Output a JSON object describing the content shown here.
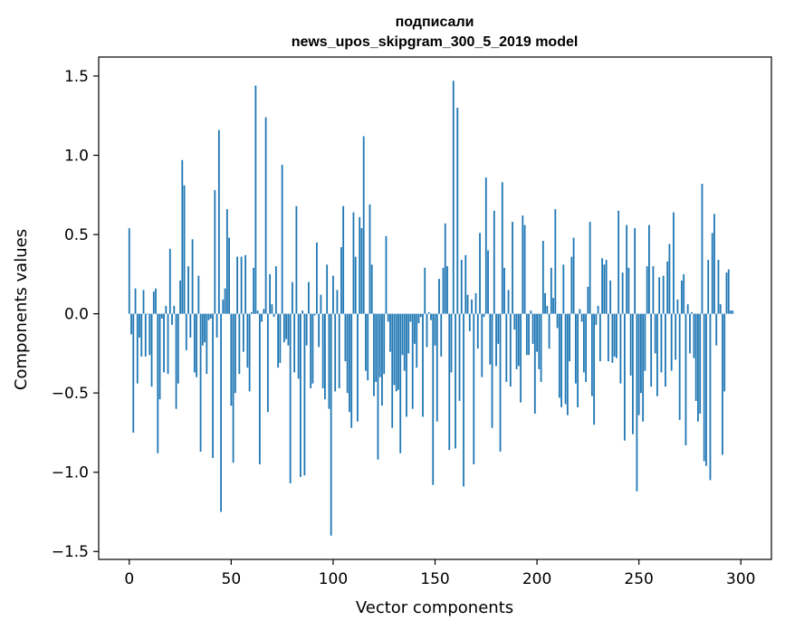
{
  "chart_data": {
    "type": "bar",
    "title": "подписали",
    "subtitle": "news_upos_skipgram_300_5_2019 model",
    "xlabel": "Vector components",
    "ylabel": "Components values",
    "xlim": [
      -15,
      315
    ],
    "ylim": [
      -1.55,
      1.62
    ],
    "x_ticks": [
      0,
      50,
      100,
      150,
      200,
      250,
      300
    ],
    "y_ticks": [
      -1.5,
      -1.0,
      -0.5,
      0.0,
      0.5,
      1.0,
      1.5
    ],
    "x_tick_labels": [
      "0",
      "50",
      "100",
      "150",
      "200",
      "250",
      "300"
    ],
    "y_tick_labels": [
      "−1.5",
      "−1.0",
      "−0.5",
      "0.0",
      "0.5",
      "1.0",
      "1.5"
    ],
    "bar_color": "#1f77b4",
    "grid": false,
    "values": [
      0.54,
      -0.13,
      -0.75,
      0.16,
      -0.44,
      -0.15,
      -0.27,
      0.15,
      -0.27,
      0.0,
      -0.26,
      -0.46,
      0.14,
      0.16,
      -0.88,
      -0.54,
      -0.03,
      -0.37,
      0.05,
      -0.38,
      0.41,
      -0.07,
      0.05,
      -0.6,
      -0.44,
      0.21,
      0.97,
      0.81,
      -0.23,
      0.3,
      -0.15,
      0.47,
      -0.37,
      -0.4,
      0.24,
      -0.87,
      -0.2,
      -0.18,
      -0.38,
      -0.04,
      -0.03,
      -0.91,
      0.78,
      -0.15,
      1.16,
      -1.25,
      0.09,
      0.16,
      0.66,
      0.48,
      -0.58,
      -0.94,
      -0.5,
      0.36,
      -0.38,
      0.36,
      -0.24,
      0.37,
      -0.34,
      -0.49,
      0.01,
      0.29,
      1.44,
      0.02,
      -0.95,
      -0.05,
      0.03,
      1.24,
      -0.62,
      0.25,
      0.06,
      -0.02,
      0.3,
      -0.34,
      -0.31,
      0.94,
      -0.18,
      -0.16,
      -0.2,
      -1.07,
      0.2,
      -0.37,
      0.68,
      -0.41,
      -1.03,
      0.02,
      -1.02,
      -0.2,
      0.2,
      -0.47,
      -0.44,
      -0.01,
      0.45,
      -0.21,
      0.12,
      -0.47,
      -0.54,
      0.31,
      -0.6,
      -1.4,
      0.24,
      -0.49,
      0.15,
      -0.47,
      0.42,
      0.68,
      -0.3,
      -0.5,
      -0.62,
      -0.72,
      0.64,
      0.36,
      -0.68,
      0.61,
      0.54,
      1.12,
      -0.36,
      -0.42,
      0.69,
      0.31,
      -0.52,
      -0.43,
      -0.92,
      -0.4,
      -0.58,
      -0.38,
      0.49,
      -0.05,
      -0.24,
      -0.72,
      -0.45,
      -0.49,
      -0.48,
      -0.88,
      -0.26,
      -0.36,
      -0.65,
      -0.25,
      -0.05,
      -0.6,
      -0.19,
      -0.34,
      -0.06,
      -0.02,
      -0.65,
      0.29,
      -0.21,
      0.01,
      -0.04,
      -1.08,
      -0.2,
      -0.68,
      0.22,
      -0.27,
      0.29,
      0.57,
      0.3,
      -0.86,
      -0.37,
      1.47,
      -0.85,
      1.3,
      -0.55,
      0.34,
      -1.09,
      0.37,
      0.12,
      -0.11,
      0.09,
      -0.95,
      0.13,
      -0.22,
      0.51,
      -0.4,
      -0.02,
      0.86,
      0.4,
      -0.32,
      -0.72,
      0.65,
      -0.33,
      -0.19,
      -0.87,
      0.83,
      0.29,
      -0.43,
      0.15,
      -0.46,
      0.58,
      -0.1,
      -0.35,
      -0.33,
      -0.56,
      0.62,
      0.56,
      -0.26,
      -0.26,
      0.02,
      -0.19,
      -0.63,
      -0.24,
      -0.35,
      -0.43,
      0.46,
      0.13,
      0.05,
      -0.22,
      0.29,
      0.1,
      0.66,
      -0.09,
      -0.53,
      -0.59,
      0.31,
      -0.57,
      -0.64,
      -0.3,
      0.36,
      0.48,
      -0.44,
      -0.59,
      0.03,
      -0.05,
      -0.37,
      -0.43,
      0.17,
      0.58,
      -0.52,
      -0.7,
      -0.07,
      0.05,
      -0.3,
      0.35,
      0.31,
      0.34,
      -0.3,
      0.21,
      -0.31,
      -0.27,
      -0.28,
      0.65,
      -0.44,
      0.26,
      -0.8,
      0.56,
      0.29,
      -0.39,
      -0.76,
      0.54,
      -1.12,
      -0.64,
      -0.5,
      -0.68,
      -0.36,
      0.3,
      0.56,
      -0.46,
      0.3,
      -0.25,
      -0.52,
      0.23,
      -0.37,
      0.24,
      -0.46,
      0.33,
      0.44,
      -0.36,
      0.64,
      -0.29,
      0.09,
      -0.67,
      0.21,
      0.25,
      -0.83,
      0.06,
      -0.25,
      0.01,
      -0.28,
      -0.55,
      -0.68,
      -0.63,
      0.82,
      -0.93,
      -0.96,
      0.34,
      -1.05,
      0.51,
      0.63,
      -0.2,
      0.34,
      0.06,
      -0.89,
      -0.49,
      0.26,
      0.28,
      0.02,
      0.02
    ]
  }
}
